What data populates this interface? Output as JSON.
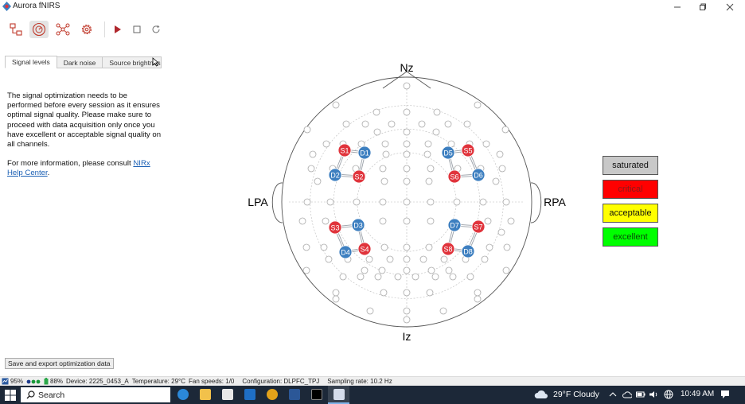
{
  "window": {
    "title": "Aurora fNIRS"
  },
  "toolbar": {
    "icons": [
      "hierarchy-icon",
      "gauge-icon",
      "network-icon",
      "gear-icon",
      "play-icon",
      "stop-icon",
      "refresh-icon"
    ]
  },
  "tabs": [
    {
      "label": "Signal levels"
    },
    {
      "label": "Dark noise"
    },
    {
      "label": "Source brightness"
    }
  ],
  "info": {
    "paragraph": "The signal optimization needs to be performed before every session as it ensures optimal signal quality. Please make sure to proceed with data acquisition only once you have excellent or acceptable signal quality on all channels.",
    "more_prefix": "For more information, please consult ",
    "more_link": "NIRx Help Center",
    "more_suffix": "."
  },
  "head": {
    "nz": "Nz",
    "iz": "Iz",
    "lpa": "LPA",
    "rpa": "RPA",
    "sources": [
      "S1",
      "S2",
      "S3",
      "S4",
      "S5",
      "S6",
      "S7",
      "S8"
    ],
    "detectors": [
      "D1",
      "D2",
      "D3",
      "D4",
      "D5",
      "D6",
      "D7",
      "D8"
    ],
    "source_color": "#e0343c",
    "detector_color": "#3d7fc0"
  },
  "legend": [
    {
      "label": "saturated",
      "bg": "#c8c8c8",
      "fg": "#111111"
    },
    {
      "label": "critical",
      "bg": "#ff0000",
      "fg": "#8a1a1a"
    },
    {
      "label": "acceptable",
      "bg": "#ffff00",
      "fg": "#111111"
    },
    {
      "label": "excellent",
      "bg": "#00ff00",
      "fg": "#0a4a0a"
    }
  ],
  "export_button": "Save and export optimization data",
  "status": {
    "cpu": "95%",
    "battery": "88%",
    "device": "Device: 2225_0453_A",
    "temperature": "Temperature: 29°C",
    "fan": "Fan speeds: 1/0",
    "config": "Configuration: DLPFC_TPJ",
    "rate": "Sampling rate: 10.2 Hz"
  },
  "taskbar": {
    "search": "Search",
    "weather": "29°F  Cloudy",
    "time": "10:49 AM"
  }
}
